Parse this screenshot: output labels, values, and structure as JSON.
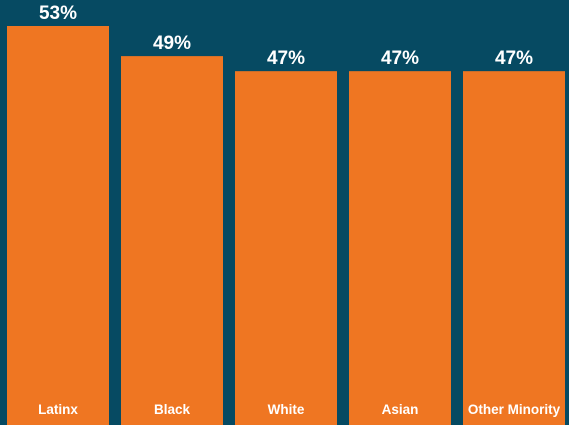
{
  "chart_data": {
    "type": "bar",
    "categories": [
      "Latinx",
      "Black",
      "White",
      "Asian",
      "Other Minority"
    ],
    "values": [
      53,
      49,
      47,
      47,
      47
    ],
    "value_labels": [
      "53%",
      "49%",
      "47%",
      "47%",
      "47%"
    ],
    "unit": "%",
    "title": "",
    "xlabel": "",
    "ylabel": "",
    "ylim": [
      0,
      53
    ],
    "grid": false,
    "legend": "none",
    "colors": {
      "background": "#064a62",
      "bar": "#ef7622",
      "text": "#ffffff"
    }
  }
}
